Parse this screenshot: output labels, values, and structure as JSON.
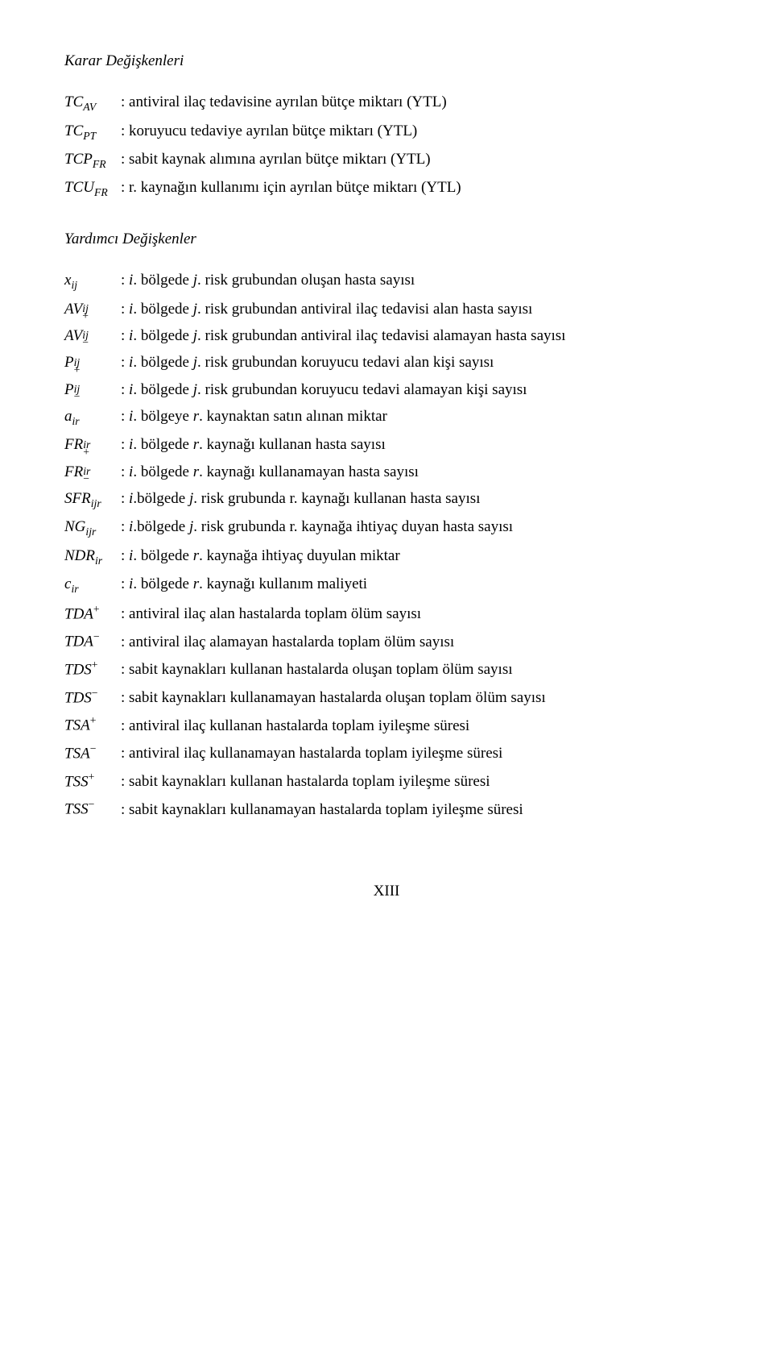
{
  "sections": {
    "decision_title": "Karar Değişkenleri",
    "aux_title": "Yardımcı Değişkenler"
  },
  "decision_vars": [
    {
      "sym_main": "TC",
      "sym_sub": "AV",
      "sym_sup": "",
      "desc": ": antiviral ilaç tedavisine ayrılan bütçe miktarı (YTL)"
    },
    {
      "sym_main": "TC",
      "sym_sub": "PT",
      "sym_sup": "",
      "desc": ": koruyucu tedaviye ayrılan bütçe miktarı (YTL)"
    },
    {
      "sym_main": "TCP",
      "sym_sub": "FR",
      "sym_sup": "",
      "desc": ": sabit kaynak alımına ayrılan bütçe miktarı (YTL)"
    },
    {
      "sym_main": "TCU",
      "sym_sub": "FR",
      "sym_sup": "",
      "desc": ": r. kaynağın kullanımı için ayrılan bütçe miktarı (YTL)"
    }
  ],
  "aux_vars": [
    {
      "sym_main": "x",
      "sym_sub": "ij",
      "sym_sup": "",
      "desc_prefix": ": ",
      "desc_i": "i",
      "desc_mid": ". bölgede ",
      "desc_j": "j",
      "desc_rest": ". risk grubundan oluşan hasta sayısı"
    },
    {
      "sym_main": "AV",
      "sym_sub": "ij",
      "sym_sup": "+",
      "desc_prefix": ": ",
      "desc_i": "i",
      "desc_mid": ". bölgede ",
      "desc_j": "j",
      "desc_rest": ". risk grubundan antiviral ilaç tedavisi alan hasta sayısı"
    },
    {
      "sym_main": "AV",
      "sym_sub": "ij",
      "sym_sup": "−",
      "desc_prefix": ": ",
      "desc_i": "i",
      "desc_mid": ". bölgede ",
      "desc_j": "j",
      "desc_rest": ". risk grubundan antiviral ilaç tedavisi alamayan hasta sayısı"
    },
    {
      "sym_main": "P",
      "sym_sub": "ij",
      "sym_sup": "+",
      "desc_prefix": ": ",
      "desc_i": "i",
      "desc_mid": ". bölgede ",
      "desc_j": "j",
      "desc_rest": ". risk grubundan koruyucu tedavi alan kişi  sayısı"
    },
    {
      "sym_main": "P",
      "sym_sub": "ij",
      "sym_sup": "−",
      "desc_prefix": ": ",
      "desc_i": "i",
      "desc_mid": ". bölgede ",
      "desc_j": "j",
      "desc_rest": ". risk grubundan koruyucu tedavi alamayan kişi  sayısı"
    },
    {
      "sym_main": "a",
      "sym_sub": "ir",
      "sym_sup": "",
      "desc_prefix": ": ",
      "desc_i": "i",
      "desc_mid": ". bölgeye ",
      "desc_j": "r",
      "desc_rest": ". kaynaktan satın alınan miktar"
    },
    {
      "sym_main": "FR",
      "sym_sub": "ir",
      "sym_sup": "+",
      "desc_prefix": ": ",
      "desc_i": "i",
      "desc_mid": ". bölgede ",
      "desc_j": "r",
      "desc_rest": ". kaynağı kullanan hasta sayısı"
    },
    {
      "sym_main": "FR",
      "sym_sub": "ir",
      "sym_sup": "−",
      "desc_prefix": ": ",
      "desc_i": "i",
      "desc_mid": ". bölgede ",
      "desc_j": "r",
      "desc_rest": ". kaynağı kullanamayan hasta sayısı"
    },
    {
      "sym_main": "SFR",
      "sym_sub": "ijr",
      "sym_sup": "",
      "desc_prefix": ": ",
      "desc_i": "i",
      "desc_mid": ".bölgede ",
      "desc_j": "j",
      "desc_rest": ". risk grubunda r. kaynağı kullanan hasta  sayısı"
    },
    {
      "sym_main": "NG",
      "sym_sub": "ijr",
      "sym_sup": "",
      "desc_prefix": ": ",
      "desc_i": "i",
      "desc_mid": ".bölgede ",
      "desc_j": "j",
      "desc_rest": ". risk grubunda r. kaynağa ihtiyaç duyan hasta  sayısı"
    },
    {
      "sym_main": "NDR",
      "sym_sub": "ir",
      "sym_sup": "",
      "desc_prefix": ": ",
      "desc_i": "i",
      "desc_mid": ". bölgede ",
      "desc_j": "r",
      "desc_rest": ". kaynağa ihtiyaç duyulan miktar"
    },
    {
      "sym_main": "c",
      "sym_sub": "ir",
      "sym_sup": "",
      "desc_prefix": ": ",
      "desc_i": "i",
      "desc_mid": ". bölgede ",
      "desc_j": "r",
      "desc_rest": ". kaynağı kullanım maliyeti"
    },
    {
      "sym_main": "TDA",
      "sym_sub": "",
      "sym_sup": "+",
      "desc_prefix": ": antiviral ilaç alan hastalarda toplam ölüm sayısı",
      "desc_i": "",
      "desc_mid": "",
      "desc_j": "",
      "desc_rest": ""
    },
    {
      "sym_main": "TDA",
      "sym_sub": "",
      "sym_sup": "−",
      "desc_prefix": ": antiviral ilaç alamayan hastalarda toplam ölüm sayısı",
      "desc_i": "",
      "desc_mid": "",
      "desc_j": "",
      "desc_rest": ""
    },
    {
      "sym_main": "TDS",
      "sym_sub": "",
      "sym_sup": "+",
      "desc_prefix": ": sabit kaynakları kullanan hastalarda oluşan toplam ölüm sayısı",
      "desc_i": "",
      "desc_mid": "",
      "desc_j": "",
      "desc_rest": ""
    },
    {
      "sym_main": "TDS",
      "sym_sub": "",
      "sym_sup": "−",
      "desc_prefix": ": sabit kaynakları kullanamayan  hastalarda oluşan toplam ölüm sayısı",
      "desc_i": "",
      "desc_mid": "",
      "desc_j": "",
      "desc_rest": ""
    },
    {
      "sym_main": "TSA",
      "sym_sub": "",
      "sym_sup": "+",
      "desc_prefix": ": antiviral ilaç kullanan hastalarda toplam iyileşme süresi",
      "desc_i": "",
      "desc_mid": "",
      "desc_j": "",
      "desc_rest": ""
    },
    {
      "sym_main": "TSA",
      "sym_sub": "",
      "sym_sup": "−",
      "desc_prefix": ": antiviral ilaç kullanamayan hastalarda toplam iyileşme süresi",
      "desc_i": "",
      "desc_mid": "",
      "desc_j": "",
      "desc_rest": ""
    },
    {
      "sym_main": "TSS",
      "sym_sub": "",
      "sym_sup": "+",
      "desc_prefix": ": sabit kaynakları kullanan hastalarda toplam iyileşme süresi",
      "desc_i": "",
      "desc_mid": "",
      "desc_j": "",
      "desc_rest": ""
    },
    {
      "sym_main": "TSS",
      "sym_sub": "",
      "sym_sup": "−",
      "desc_prefix": ": sabit kaynakları kullanamayan hastalarda toplam iyileşme süresi",
      "desc_i": "",
      "desc_mid": "",
      "desc_j": "",
      "desc_rest": ""
    }
  ],
  "footer": "XIII"
}
